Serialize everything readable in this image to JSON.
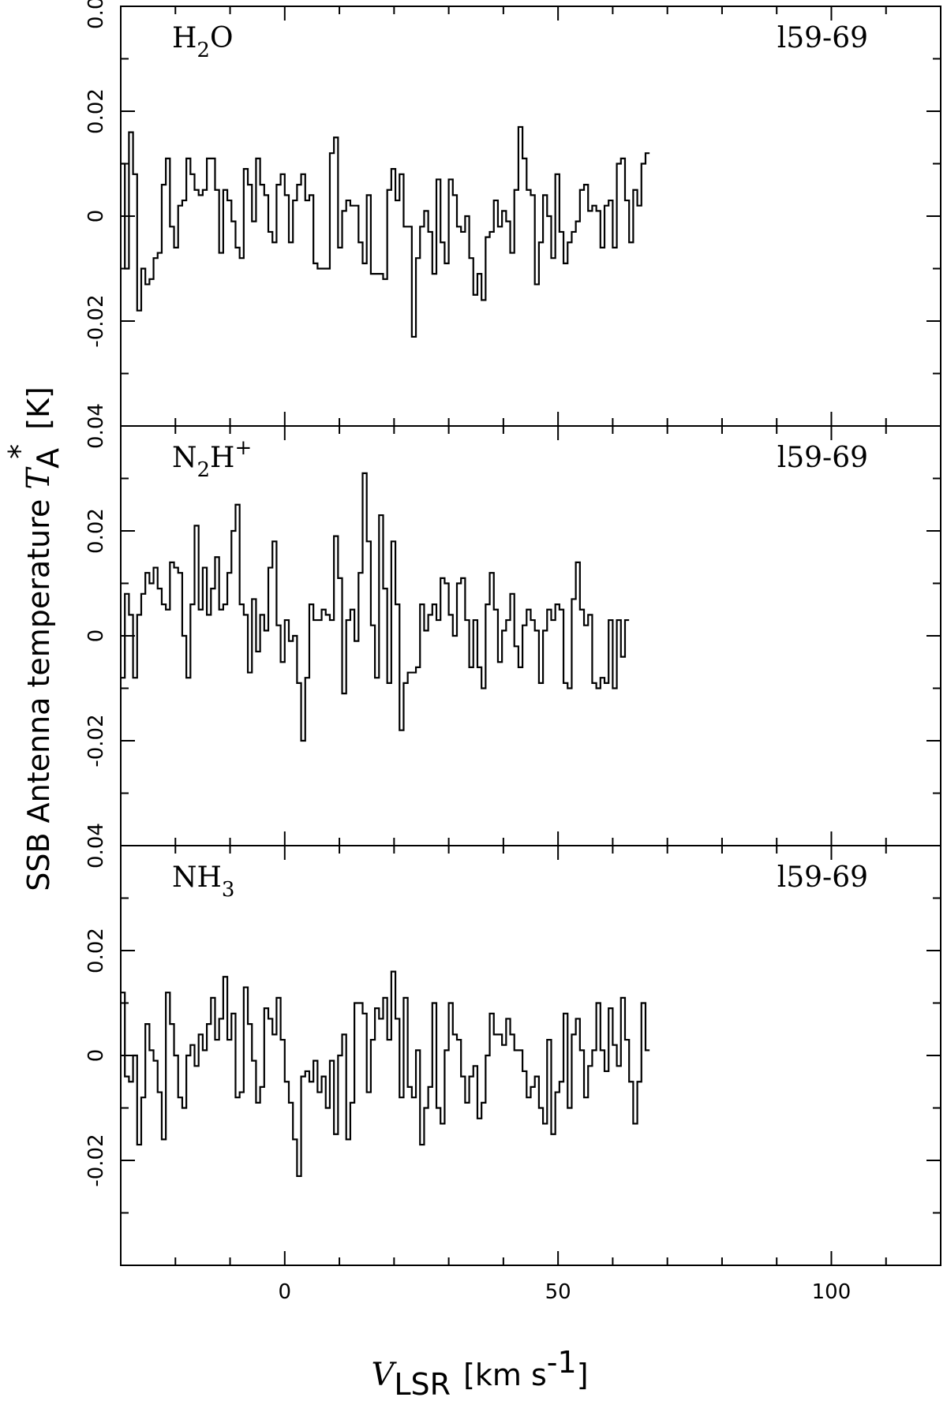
{
  "chart_data": {
    "type": "line",
    "style": "step",
    "xlim": [
      -30,
      120
    ],
    "ylim": [
      -0.04,
      0.04
    ],
    "x_ticks": [
      0,
      50,
      100
    ],
    "x_tick_labels": [
      "0",
      "50",
      "100"
    ],
    "y_ticks": [
      -0.02,
      0,
      0.02,
      0.04
    ],
    "y_tick_labels": [
      "-0.02",
      "0",
      "0.02",
      "0.04"
    ],
    "x_minor_step": 10,
    "y_minor_step": 0.01,
    "grid": false,
    "legend": "none",
    "xlabel": {
      "sym": "V",
      "sub": "LSR",
      "pre": "[km s",
      "sup": "-1",
      "post": "]"
    },
    "ylabel": {
      "text": "SSB Antenna temperature ",
      "sym": "T",
      "sub": "A",
      "sup": "*",
      "post": " [K]"
    },
    "x_start": -30,
    "x_step": 0.75,
    "panels": [
      {
        "molecule": {
          "pre": "H",
          "sub": "2",
          "post": "O",
          "sup": ""
        },
        "source": "l59-69",
        "values": [
          0.01,
          -0.01,
          0.016,
          0.008,
          -0.018,
          -0.01,
          -0.013,
          -0.012,
          -0.008,
          -0.007,
          0.006,
          0.011,
          -0.002,
          -0.006,
          0.002,
          0.003,
          0.011,
          0.008,
          0.005,
          0.004,
          0.005,
          0.011,
          0.011,
          0.005,
          -0.007,
          0.005,
          0.003,
          -0.001,
          -0.006,
          -0.008,
          0.009,
          0.006,
          -0.001,
          0.011,
          0.006,
          0.004,
          -0.003,
          -0.005,
          0.006,
          0.008,
          0.004,
          -0.005,
          0.003,
          0.006,
          0.008,
          0.003,
          0.004,
          -0.009,
          -0.01,
          -0.01,
          -0.01,
          0.012,
          0.015,
          -0.006,
          0.001,
          0.003,
          0.002,
          0.002,
          -0.005,
          -0.009,
          0.004,
          -0.011,
          -0.011,
          -0.011,
          -0.012,
          0.005,
          0.009,
          0.003,
          0.008,
          -0.002,
          -0.002,
          -0.023,
          -0.008,
          -0.002,
          0.001,
          -0.003,
          -0.011,
          0.007,
          -0.005,
          -0.009,
          0.007,
          0.004,
          -0.002,
          -0.003,
          0.0,
          -0.008,
          -0.015,
          -0.011,
          -0.016,
          -0.004,
          -0.003,
          0.003,
          -0.002,
          0.001,
          -0.001,
          -0.007,
          0.005,
          0.017,
          0.011,
          0.005,
          0.004,
          -0.013,
          -0.005,
          0.004,
          0.0,
          -0.008,
          0.008,
          -0.003,
          -0.009,
          -0.005,
          -0.003,
          -0.001,
          0.005,
          0.006,
          0.001,
          0.002,
          0.001,
          -0.006,
          0.002,
          0.003,
          -0.006,
          0.01,
          0.011,
          0.003,
          -0.005,
          0.005,
          0.002,
          0.01,
          0.012
        ]
      },
      {
        "molecule": {
          "pre": "N",
          "sub": "2",
          "post": "H",
          "sup": "+"
        },
        "source": "l59-69",
        "values": [
          -0.008,
          0.008,
          0.004,
          -0.008,
          0.004,
          0.008,
          0.012,
          0.01,
          0.013,
          0.009,
          0.006,
          0.005,
          0.014,
          0.013,
          0.012,
          0.0,
          -0.008,
          0.006,
          0.021,
          0.005,
          0.013,
          0.004,
          0.009,
          0.015,
          0.005,
          0.006,
          0.012,
          0.02,
          0.025,
          0.006,
          0.004,
          -0.007,
          0.007,
          -0.003,
          0.004,
          0.001,
          0.013,
          0.018,
          0.002,
          -0.005,
          0.003,
          -0.001,
          0.0,
          -0.009,
          -0.02,
          -0.008,
          0.006,
          0.003,
          0.003,
          0.005,
          0.004,
          0.003,
          0.019,
          0.011,
          -0.011,
          0.003,
          0.005,
          -0.001,
          0.012,
          0.031,
          0.018,
          0.002,
          -0.008,
          0.023,
          0.009,
          -0.009,
          0.018,
          0.006,
          -0.018,
          -0.009,
          -0.007,
          -0.007,
          -0.006,
          0.006,
          0.001,
          0.004,
          0.006,
          0.003,
          0.011,
          0.01,
          0.004,
          0.0,
          0.01,
          0.011,
          0.003,
          -0.006,
          0.003,
          -0.006,
          -0.01,
          0.006,
          0.012,
          0.005,
          -0.005,
          0.001,
          0.003,
          0.008,
          -0.002,
          -0.006,
          0.002,
          0.005,
          0.003,
          0.001,
          -0.009,
          0.001,
          0.005,
          0.003,
          0.006,
          0.005,
          -0.009,
          -0.01,
          0.007,
          0.014,
          0.005,
          0.002,
          0.004,
          -0.009,
          -0.01,
          -0.008,
          -0.009,
          0.003,
          -0.01,
          0.003,
          -0.004,
          0.003
        ]
      },
      {
        "molecule": {
          "pre": "NH",
          "sub": "3",
          "post": "",
          "sup": ""
        },
        "source": "l59-69",
        "values": [
          0.012,
          -0.004,
          -0.005,
          0.0,
          -0.017,
          -0.008,
          0.006,
          0.001,
          -0.001,
          -0.007,
          -0.016,
          0.012,
          0.006,
          0.0,
          -0.008,
          -0.01,
          0.0,
          0.002,
          -0.002,
          0.004,
          0.001,
          0.006,
          0.011,
          0.003,
          0.007,
          0.015,
          0.003,
          0.008,
          -0.008,
          -0.007,
          0.013,
          0.006,
          -0.001,
          -0.009,
          -0.006,
          0.009,
          0.007,
          0.004,
          0.011,
          0.003,
          -0.005,
          -0.009,
          -0.016,
          -0.023,
          -0.004,
          -0.003,
          -0.005,
          -0.001,
          -0.007,
          -0.004,
          -0.01,
          -0.001,
          -0.015,
          0.0,
          0.004,
          -0.016,
          -0.009,
          0.01,
          0.01,
          0.008,
          -0.007,
          0.003,
          0.009,
          0.007,
          0.011,
          0.003,
          0.016,
          0.007,
          -0.008,
          0.011,
          -0.006,
          -0.008,
          0.001,
          -0.017,
          -0.01,
          -0.006,
          0.01,
          -0.01,
          -0.013,
          0.001,
          0.01,
          0.004,
          0.003,
          -0.004,
          -0.009,
          -0.004,
          -0.002,
          -0.012,
          -0.009,
          0.0,
          0.008,
          0.004,
          0.004,
          0.002,
          0.007,
          0.004,
          0.001,
          0.001,
          -0.003,
          -0.008,
          -0.006,
          -0.004,
          -0.01,
          -0.013,
          0.003,
          -0.015,
          -0.007,
          -0.005,
          0.008,
          -0.01,
          0.004,
          0.007,
          0.001,
          -0.008,
          -0.002,
          0.001,
          0.01,
          0.001,
          -0.003,
          0.009,
          0.002,
          -0.002,
          0.011,
          0.003,
          -0.005,
          -0.013,
          -0.005,
          0.01,
          0.001
        ]
      }
    ]
  }
}
